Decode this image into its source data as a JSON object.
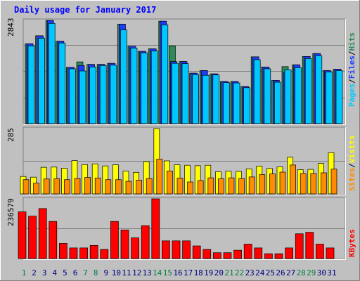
{
  "chart_data": [
    {
      "type": "bar",
      "title": "Daily usage for January 2017",
      "panel": "hits-files-pages",
      "ymax_label": "2843",
      "ylim": [
        0,
        2843
      ],
      "legend": {
        "pages": "Pages",
        "files": "Files",
        "hits": "Hits",
        "sep": "/"
      },
      "categories": [
        "1",
        "2",
        "3",
        "4",
        "5",
        "6",
        "7",
        "8",
        "9",
        "10",
        "11",
        "12",
        "13",
        "14",
        "15",
        "16",
        "17",
        "18",
        "19",
        "20",
        "21",
        "22",
        "23",
        "24",
        "25",
        "26",
        "27",
        "28",
        "29",
        "30",
        "31"
      ],
      "weekend_days": [
        1,
        7,
        8,
        14,
        15,
        21,
        22,
        28,
        29
      ],
      "series": [
        {
          "name": "Hits",
          "color": "#2e8b57",
          "values": [
            2200,
            2420,
            2843,
            2270,
            1550,
            1700,
            1630,
            1630,
            1660,
            2740,
            2130,
            1990,
            2060,
            2820,
            2140,
            1710,
            1390,
            1460,
            1370,
            1160,
            1160,
            1020,
            1840,
            1560,
            1190,
            1570,
            1620,
            1850,
            1930,
            1460,
            1500
          ]
        },
        {
          "name": "Files",
          "color": "#1a3cff",
          "values": [
            2200,
            2420,
            2843,
            2270,
            1550,
            1600,
            1630,
            1630,
            1660,
            2740,
            2130,
            1990,
            2060,
            2820,
            1710,
            1710,
            1390,
            1460,
            1370,
            1160,
            1160,
            1020,
            1840,
            1560,
            1190,
            1410,
            1620,
            1850,
            1930,
            1460,
            1500
          ]
        },
        {
          "name": "Pages",
          "color": "#00c8ff",
          "values": [
            2140,
            2350,
            2760,
            2220,
            1510,
            1450,
            1560,
            1600,
            1610,
            2580,
            2080,
            1950,
            2000,
            2720,
            1660,
            1650,
            1350,
            1330,
            1340,
            1130,
            1120,
            990,
            1760,
            1510,
            1140,
            1480,
            1540,
            1790,
            1870,
            1420,
            1460
          ]
        }
      ]
    },
    {
      "type": "bar",
      "panel": "visits-sites",
      "ymax_label": "285",
      "ylim": [
        0,
        285
      ],
      "legend": {
        "visits": "Visits",
        "sites": "Sites",
        "sep": "/"
      },
      "categories": [
        "1",
        "2",
        "3",
        "4",
        "5",
        "6",
        "7",
        "8",
        "9",
        "10",
        "11",
        "12",
        "13",
        "14",
        "15",
        "16",
        "17",
        "18",
        "19",
        "20",
        "21",
        "22",
        "23",
        "24",
        "25",
        "26",
        "27",
        "28",
        "29",
        "30",
        "31"
      ],
      "series": [
        {
          "name": "Visits",
          "color": "#ffff00",
          "values": [
            76,
            73,
            116,
            117,
            112,
            145,
            128,
            131,
            122,
            127,
            99,
            94,
            141,
            285,
            144,
            127,
            125,
            123,
            125,
            97,
            99,
            98,
            109,
            121,
            111,
            118,
            160,
            106,
            107,
            133,
            180
          ]
        },
        {
          "name": "Sites",
          "color": "#ff8c00",
          "values": [
            62,
            47,
            65,
            66,
            62,
            67,
            72,
            69,
            62,
            62,
            55,
            60,
            67,
            152,
            100,
            69,
            52,
            58,
            70,
            66,
            70,
            67,
            74,
            84,
            87,
            95,
            126,
            89,
            89,
            92,
            108
          ]
        }
      ]
    },
    {
      "type": "bar",
      "panel": "kbytes",
      "ymax_label": "236579",
      "ylim": [
        0,
        236579
      ],
      "legend": {
        "kbytes": "KBytes"
      },
      "categories": [
        "1",
        "2",
        "3",
        "4",
        "5",
        "6",
        "7",
        "8",
        "9",
        "10",
        "11",
        "12",
        "13",
        "14",
        "15",
        "16",
        "17",
        "18",
        "19",
        "20",
        "21",
        "22",
        "23",
        "24",
        "25",
        "26",
        "27",
        "28",
        "29",
        "30",
        "31"
      ],
      "series": [
        {
          "name": "KBytes",
          "color": "#ff0000",
          "values": [
            185000,
            168000,
            198000,
            147000,
            60000,
            42000,
            42000,
            52000,
            36000,
            147000,
            113000,
            82000,
            130000,
            236579,
            70000,
            70000,
            70000,
            50000,
            36000,
            23000,
            23000,
            33000,
            57000,
            42000,
            19000,
            19000,
            42000,
            98000,
            104000,
            57000,
            42000
          ]
        }
      ]
    }
  ],
  "colors": {
    "background": "#c0c0c0",
    "title": "#0000ff",
    "weekend_label": "#008040",
    "weekday_label": "#000080",
    "axis_label": "#000000"
  }
}
